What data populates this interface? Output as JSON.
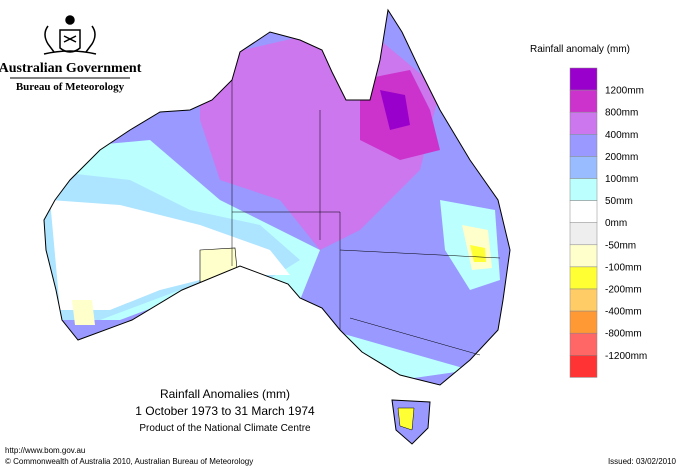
{
  "header": {
    "agency": "Australian Government",
    "bureau": "Bureau of Meteorology"
  },
  "legend": {
    "title": "Rainfall anomaly (mm)",
    "labels": [
      "1200mm",
      "800mm",
      "400mm",
      "200mm",
      "100mm",
      "50mm",
      "0mm",
      "-50mm",
      "-100mm",
      "-200mm",
      "-400mm",
      "-800mm",
      "-1200mm"
    ],
    "colors": [
      "#9900cc",
      "#cc33cc",
      "#cc77ee",
      "#9999ff",
      "#99bbff",
      "#bbffff",
      "#ffffff",
      "#eeeeee",
      "#ffffcc",
      "#ffff33",
      "#ffcc66",
      "#ff9933",
      "#ff6666",
      "#ff3333"
    ]
  },
  "map": {
    "title": "Rainfall Anomalies (mm)",
    "period": "1 October 1973 to 31 March 1974",
    "product": "Product of the National Climate Centre"
  },
  "footer": {
    "url": "http://www.bom.gov.au",
    "copyright": "© Commonwealth of Australia 2010, Australian Bureau of Meteorology",
    "issued": "Issued: 03/02/2010"
  }
}
